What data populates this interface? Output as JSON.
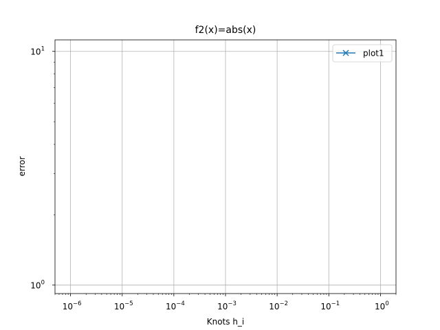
{
  "chart_data": {
    "type": "line",
    "title": "f2(x)=abs(x)",
    "xlabel": "Knots h_i",
    "ylabel": "error",
    "xscale": "log",
    "yscale": "log",
    "xlim": [
      5e-07,
      2
    ],
    "ylim": [
      0.92,
      11.2
    ],
    "grid": true,
    "legend_location": "upper right",
    "x_major_ticks": [
      {
        "value": 1e-06,
        "base": "10",
        "exp": "−6"
      },
      {
        "value": 1e-05,
        "base": "10",
        "exp": "−5"
      },
      {
        "value": 0.0001,
        "base": "10",
        "exp": "−4"
      },
      {
        "value": 0.001,
        "base": "10",
        "exp": "−3"
      },
      {
        "value": 0.01,
        "base": "10",
        "exp": "−2"
      },
      {
        "value": 0.1,
        "base": "10",
        "exp": "−1"
      },
      {
        "value": 1,
        "base": "10",
        "exp": "0"
      }
    ],
    "y_major_ticks": [
      {
        "value": 1,
        "base": "10",
        "exp": "0"
      },
      {
        "value": 10,
        "base": "10",
        "exp": "1"
      }
    ],
    "series": [
      {
        "name": "plot1",
        "color": "#1f77b4",
        "marker": "x",
        "x": [],
        "y": []
      }
    ]
  }
}
